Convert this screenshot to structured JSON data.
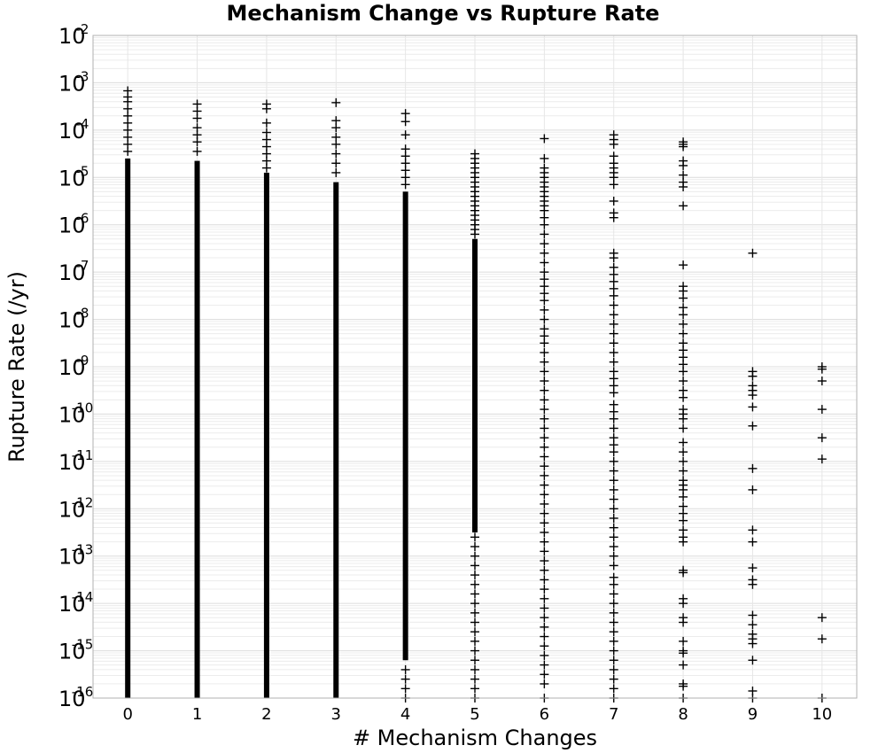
{
  "chart_data": {
    "type": "scatter",
    "title": "Mechanism Change vs Rupture Rate",
    "xlabel": "# Mechanism Changes",
    "ylabel": "Rupture Rate (/yr)",
    "x_ticks": [
      "0",
      "1",
      "2",
      "3",
      "4",
      "5",
      "6",
      "7",
      "8",
      "9",
      "10"
    ],
    "xlim": [
      -0.5,
      10.5
    ],
    "y_scale": "log",
    "ylim": [
      1e-16,
      0.01
    ],
    "y_tick_base": "10",
    "y_tick_exponents": [
      "-2",
      "-3",
      "-4",
      "-5",
      "-6",
      "-7",
      "-8",
      "-9",
      "-10",
      "-11",
      "-12",
      "-13",
      "-14",
      "-15",
      "-16"
    ],
    "grid": true,
    "marker": "plus",
    "marker_color": "#000000",
    "series": [
      {
        "solid_ranges": [
          [
            0,
            [
              -16,
              -4.6
            ]
          ],
          [
            1,
            [
              -16,
              -4.65
            ]
          ],
          [
            2,
            [
              -16,
              -4.9
            ]
          ],
          [
            3,
            [
              -16,
              -5.1
            ]
          ],
          [
            4,
            [
              -15.2,
              -5.3
            ]
          ],
          [
            5,
            [
              -12.5,
              -6.3
            ]
          ]
        ],
        "points": [
          [
            0,
            -3.17
          ],
          [
            0,
            -3.3
          ],
          [
            0,
            -3.4
          ],
          [
            0,
            -3.55
          ],
          [
            0,
            -3.7
          ],
          [
            0,
            -3.85
          ],
          [
            0,
            -4.0
          ],
          [
            0,
            -4.15
          ],
          [
            0,
            -4.3
          ],
          [
            0,
            -4.45
          ],
          [
            1,
            -3.45
          ],
          [
            1,
            -3.6
          ],
          [
            1,
            -3.75
          ],
          [
            1,
            -3.95
          ],
          [
            1,
            -4.1
          ],
          [
            1,
            -4.25
          ],
          [
            1,
            -4.45
          ],
          [
            2,
            -3.45
          ],
          [
            2,
            -3.55
          ],
          [
            2,
            -3.85
          ],
          [
            2,
            -4.05
          ],
          [
            2,
            -4.2
          ],
          [
            2,
            -4.35
          ],
          [
            2,
            -4.5
          ],
          [
            2,
            -4.65
          ],
          [
            2,
            -4.8
          ],
          [
            3,
            -3.42
          ],
          [
            3,
            -3.8
          ],
          [
            3,
            -3.95
          ],
          [
            3,
            -4.15
          ],
          [
            3,
            -4.3
          ],
          [
            3,
            -4.5
          ],
          [
            3,
            -4.7
          ],
          [
            3,
            -4.9
          ],
          [
            4,
            -3.65
          ],
          [
            4,
            -3.82
          ],
          [
            4,
            -4.1
          ],
          [
            4,
            -4.4
          ],
          [
            4,
            -4.55
          ],
          [
            4,
            -4.7
          ],
          [
            4,
            -4.85
          ],
          [
            4,
            -5.0
          ],
          [
            4,
            -5.15
          ],
          [
            4,
            -15.4
          ],
          [
            4,
            -15.6
          ],
          [
            4,
            -15.8
          ],
          [
            4,
            -16.0
          ],
          [
            5,
            -4.5
          ],
          [
            5,
            -4.6
          ],
          [
            5,
            -4.7
          ],
          [
            5,
            -4.8
          ],
          [
            5,
            -4.9
          ],
          [
            5,
            -5.0
          ],
          [
            5,
            -5.1
          ],
          [
            5,
            -5.2
          ],
          [
            5,
            -5.3
          ],
          [
            5,
            -5.4
          ],
          [
            5,
            -5.5
          ],
          [
            5,
            -5.6
          ],
          [
            5,
            -5.7
          ],
          [
            5,
            -5.8
          ],
          [
            5,
            -5.9
          ],
          [
            5,
            -6.0
          ],
          [
            5,
            -6.1
          ],
          [
            5,
            -6.2
          ],
          [
            5,
            -12.6
          ],
          [
            5,
            -12.8
          ],
          [
            5,
            -13.0
          ],
          [
            5,
            -13.2
          ],
          [
            5,
            -13.4
          ],
          [
            5,
            -13.6
          ],
          [
            5,
            -13.8
          ],
          [
            5,
            -14.0
          ],
          [
            5,
            -14.2
          ],
          [
            5,
            -14.4
          ],
          [
            5,
            -14.6
          ],
          [
            5,
            -14.8
          ],
          [
            5,
            -15.0
          ],
          [
            5,
            -15.2
          ],
          [
            5,
            -15.4
          ],
          [
            5,
            -15.6
          ],
          [
            5,
            -15.8
          ],
          [
            5,
            -16.0
          ],
          [
            6,
            -4.18
          ],
          [
            6,
            -4.6
          ],
          [
            6,
            -4.8
          ],
          [
            6,
            -4.9
          ],
          [
            6,
            -5.0
          ],
          [
            6,
            -5.1
          ],
          [
            6,
            -5.2
          ],
          [
            6,
            -5.3
          ],
          [
            6,
            -5.4
          ],
          [
            6,
            -5.5
          ],
          [
            6,
            -5.6
          ],
          [
            6,
            -5.7
          ],
          [
            6,
            -5.85
          ],
          [
            6,
            -6.0
          ],
          [
            6,
            -6.2
          ],
          [
            6,
            -6.4
          ],
          [
            6,
            -6.6
          ],
          [
            6,
            -6.8
          ],
          [
            6,
            -7.0
          ],
          [
            6,
            -7.15
          ],
          [
            6,
            -7.3
          ],
          [
            6,
            -7.45
          ],
          [
            6,
            -7.6
          ],
          [
            6,
            -7.8
          ],
          [
            6,
            -8.0
          ],
          [
            6,
            -8.2
          ],
          [
            6,
            -8.35
          ],
          [
            6,
            -8.5
          ],
          [
            6,
            -8.7
          ],
          [
            6,
            -8.9
          ],
          [
            6,
            -9.1
          ],
          [
            6,
            -9.3
          ],
          [
            6,
            -9.5
          ],
          [
            6,
            -9.7
          ],
          [
            6,
            -9.9
          ],
          [
            6,
            -10.1
          ],
          [
            6,
            -10.3
          ],
          [
            6,
            -10.5
          ],
          [
            6,
            -10.7
          ],
          [
            6,
            -10.9
          ],
          [
            6,
            -11.1
          ],
          [
            6,
            -11.3
          ],
          [
            6,
            -11.5
          ],
          [
            6,
            -11.7
          ],
          [
            6,
            -11.9
          ],
          [
            6,
            -12.1
          ],
          [
            6,
            -12.3
          ],
          [
            6,
            -12.5
          ],
          [
            6,
            -12.7
          ],
          [
            6,
            -12.9
          ],
          [
            6,
            -13.1
          ],
          [
            6,
            -13.3
          ],
          [
            6,
            -13.5
          ],
          [
            6,
            -13.7
          ],
          [
            6,
            -13.9
          ],
          [
            6,
            -14.1
          ],
          [
            6,
            -14.3
          ],
          [
            6,
            -14.5
          ],
          [
            6,
            -14.7
          ],
          [
            6,
            -14.9
          ],
          [
            6,
            -15.1
          ],
          [
            6,
            -15.3
          ],
          [
            6,
            -15.5
          ],
          [
            6,
            -15.7
          ],
          [
            6,
            -16.0
          ],
          [
            7,
            -4.1
          ],
          [
            7,
            -4.2
          ],
          [
            7,
            -4.3
          ],
          [
            7,
            -4.55
          ],
          [
            7,
            -4.7
          ],
          [
            7,
            -4.8
          ],
          [
            7,
            -4.9
          ],
          [
            7,
            -5.0
          ],
          [
            7,
            -5.15
          ],
          [
            7,
            -5.5
          ],
          [
            7,
            -5.75
          ],
          [
            7,
            -5.85
          ],
          [
            7,
            -6.6
          ],
          [
            7,
            -6.7
          ],
          [
            7,
            -6.9
          ],
          [
            7,
            -7.05
          ],
          [
            7,
            -7.2
          ],
          [
            7,
            -7.35
          ],
          [
            7,
            -7.5
          ],
          [
            7,
            -7.7
          ],
          [
            7,
            -7.9
          ],
          [
            7,
            -8.1
          ],
          [
            7,
            -8.3
          ],
          [
            7,
            -8.5
          ],
          [
            7,
            -8.7
          ],
          [
            7,
            -8.9
          ],
          [
            7,
            -9.1
          ],
          [
            7,
            -9.25
          ],
          [
            7,
            -9.4
          ],
          [
            7,
            -9.55
          ],
          [
            7,
            -9.8
          ],
          [
            7,
            -9.95
          ],
          [
            7,
            -10.1
          ],
          [
            7,
            -10.3
          ],
          [
            7,
            -10.5
          ],
          [
            7,
            -10.65
          ],
          [
            7,
            -10.8
          ],
          [
            7,
            -11.0
          ],
          [
            7,
            -11.2
          ],
          [
            7,
            -11.4
          ],
          [
            7,
            -11.6
          ],
          [
            7,
            -11.8
          ],
          [
            7,
            -12.0
          ],
          [
            7,
            -12.2
          ],
          [
            7,
            -12.4
          ],
          [
            7,
            -12.6
          ],
          [
            7,
            -12.8
          ],
          [
            7,
            -13.0
          ],
          [
            7,
            -13.2
          ],
          [
            7,
            -13.45
          ],
          [
            7,
            -13.6
          ],
          [
            7,
            -13.8
          ],
          [
            7,
            -14.0
          ],
          [
            7,
            -14.2
          ],
          [
            7,
            -14.4
          ],
          [
            7,
            -14.6
          ],
          [
            7,
            -14.8
          ],
          [
            7,
            -15.0
          ],
          [
            7,
            -15.2
          ],
          [
            7,
            -15.4
          ],
          [
            7,
            -15.6
          ],
          [
            7,
            -15.8
          ],
          [
            7,
            -16.0
          ],
          [
            8,
            -4.25
          ],
          [
            8,
            -4.3
          ],
          [
            8,
            -4.35
          ],
          [
            8,
            -4.65
          ],
          [
            8,
            -4.75
          ],
          [
            8,
            -4.95
          ],
          [
            8,
            -5.1
          ],
          [
            8,
            -5.2
          ],
          [
            8,
            -5.6
          ],
          [
            8,
            -6.85
          ],
          [
            8,
            -7.3
          ],
          [
            8,
            -7.4
          ],
          [
            8,
            -7.55
          ],
          [
            8,
            -7.75
          ],
          [
            8,
            -7.9
          ],
          [
            8,
            -8.1
          ],
          [
            8,
            -8.3
          ],
          [
            8,
            -8.5
          ],
          [
            8,
            -8.65
          ],
          [
            8,
            -8.8
          ],
          [
            8,
            -8.95
          ],
          [
            8,
            -9.1
          ],
          [
            8,
            -9.3
          ],
          [
            8,
            -9.5
          ],
          [
            8,
            -9.65
          ],
          [
            8,
            -9.9
          ],
          [
            8,
            -10.0
          ],
          [
            8,
            -10.1
          ],
          [
            8,
            -10.3
          ],
          [
            8,
            -10.6
          ],
          [
            8,
            -10.8
          ],
          [
            8,
            -11.0
          ],
          [
            8,
            -11.2
          ],
          [
            8,
            -11.4
          ],
          [
            8,
            -11.5
          ],
          [
            8,
            -11.6
          ],
          [
            8,
            -11.75
          ],
          [
            8,
            -11.95
          ],
          [
            8,
            -12.1
          ],
          [
            8,
            -12.25
          ],
          [
            8,
            -12.45
          ],
          [
            8,
            -12.6
          ],
          [
            8,
            -12.7
          ],
          [
            8,
            -13.3
          ],
          [
            8,
            -13.35
          ],
          [
            8,
            -13.9
          ],
          [
            8,
            -14.0
          ],
          [
            8,
            -14.3
          ],
          [
            8,
            -14.4
          ],
          [
            8,
            -14.8
          ],
          [
            8,
            -15.0
          ],
          [
            8,
            -15.05
          ],
          [
            8,
            -15.3
          ],
          [
            8,
            -15.7
          ],
          [
            8,
            -15.75
          ],
          [
            8,
            -16.0
          ],
          [
            9,
            -6.6
          ],
          [
            9,
            -9.1
          ],
          [
            9,
            -9.2
          ],
          [
            9,
            -9.4
          ],
          [
            9,
            -9.5
          ],
          [
            9,
            -9.6
          ],
          [
            9,
            -9.85
          ],
          [
            9,
            -10.25
          ],
          [
            9,
            -11.15
          ],
          [
            9,
            -11.6
          ],
          [
            9,
            -12.45
          ],
          [
            9,
            -12.7
          ],
          [
            9,
            -13.25
          ],
          [
            9,
            -13.5
          ],
          [
            9,
            -13.6
          ],
          [
            9,
            -14.25
          ],
          [
            9,
            -14.45
          ],
          [
            9,
            -14.65
          ],
          [
            9,
            -14.75
          ],
          [
            9,
            -14.85
          ],
          [
            9,
            -15.2
          ],
          [
            9,
            -15.85
          ],
          [
            9,
            -16.0
          ],
          [
            10,
            -9.0
          ],
          [
            10,
            -9.05
          ],
          [
            10,
            -9.3
          ],
          [
            10,
            -9.9
          ],
          [
            10,
            -10.5
          ],
          [
            10,
            -10.95
          ],
          [
            10,
            -14.3
          ],
          [
            10,
            -14.75
          ],
          [
            10,
            -16.0
          ]
        ]
      }
    ]
  }
}
